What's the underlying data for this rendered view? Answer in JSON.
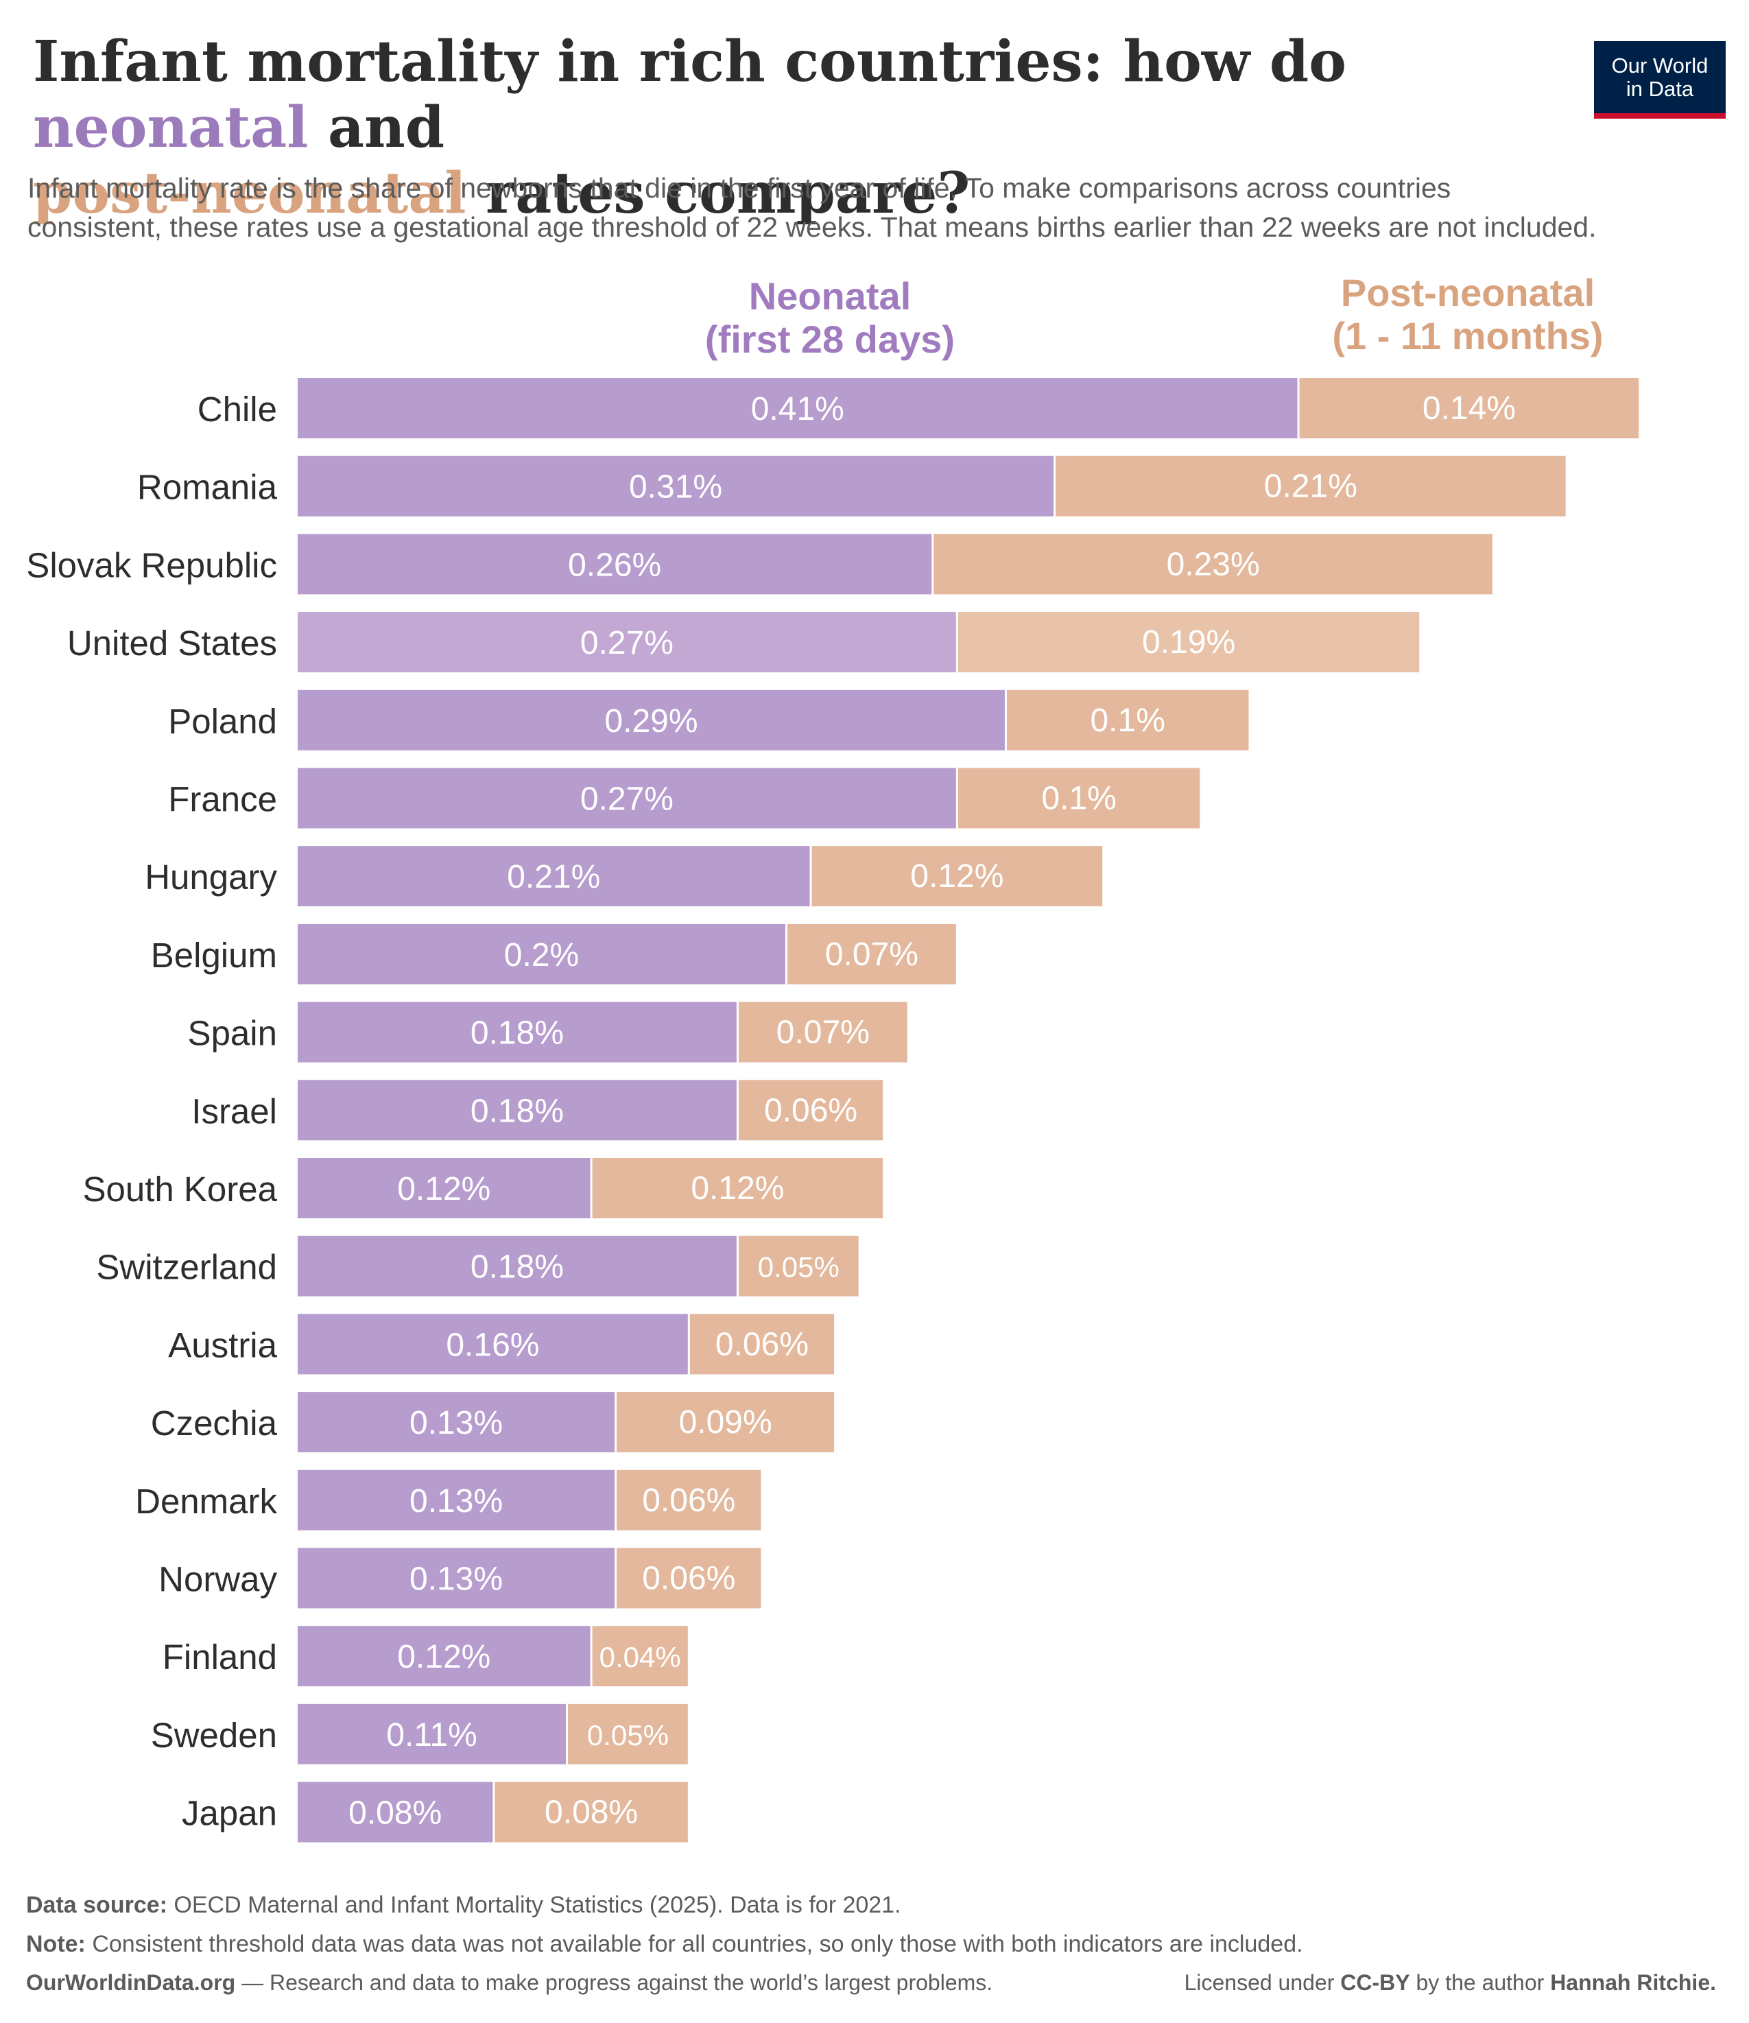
{
  "header": {
    "title_part1": "Infant mortality in rich countries: how do ",
    "title_neonatal": "neonatal",
    "title_part2": " and",
    "title_postneonatal": "post-neonatal",
    "title_part3": " rates compare?",
    "subtitle_line1": "Infant mortality rate is the share of newborns that die in the first year of life. To make comparisons across countries",
    "subtitle_line2": "consistent, these rates use a gestational age threshold of 22 weeks. That means births earlier than 22 weeks are not included."
  },
  "logo": {
    "line1": "Our World",
    "line2": "in Data"
  },
  "colors": {
    "neonatal": "#b79cce",
    "neonatal_highlight": "#c3a8d4",
    "postneonatal": "#e3b89c",
    "postneonatal_highlight": "#e8c3aa",
    "neonatal_text": "#a07bbf",
    "postneonatal_text": "#d9a37f",
    "label_text": "#ffffff",
    "country_text": "#2d2d2d"
  },
  "chart_data": {
    "type": "bar",
    "orientation": "horizontal",
    "stacked": true,
    "unit": "%",
    "series_headings": [
      {
        "line1": "Neonatal",
        "line2": "(first 28 days)"
      },
      {
        "line1": "Post-neonatal",
        "line2": "(1 - 11 months)"
      }
    ],
    "categories": [
      "Chile",
      "Romania",
      "Slovak Republic",
      "United States",
      "Poland",
      "France",
      "Hungary",
      "Belgium",
      "Spain",
      "Israel",
      "South Korea",
      "Switzerland",
      "Austria",
      "Czechia",
      "Denmark",
      "Norway",
      "Finland",
      "Sweden",
      "Japan"
    ],
    "series": [
      {
        "values": [
          0.41,
          0.31,
          0.26,
          0.27,
          0.29,
          0.27,
          0.21,
          0.2,
          0.18,
          0.18,
          0.12,
          0.18,
          0.16,
          0.13,
          0.13,
          0.13,
          0.12,
          0.11,
          0.08
        ],
        "labels": [
          "0.41%",
          "0.31%",
          "0.26%",
          "0.27%",
          "0.29%",
          "0.27%",
          "0.21%",
          "0.2%",
          "0.18%",
          "0.18%",
          "0.12%",
          "0.18%",
          "0.16%",
          "0.13%",
          "0.13%",
          "0.13%",
          "0.12%",
          "0.11%",
          "0.08%"
        ]
      },
      {
        "values": [
          0.14,
          0.21,
          0.23,
          0.19,
          0.1,
          0.1,
          0.12,
          0.07,
          0.07,
          0.06,
          0.12,
          0.05,
          0.06,
          0.09,
          0.06,
          0.06,
          0.04,
          0.05,
          0.08
        ],
        "labels": [
          "0.14%",
          "0.21%",
          "0.23%",
          "0.19%",
          "0.1%",
          "0.1%",
          "0.12%",
          "0.07%",
          "0.07%",
          "0.06%",
          "0.12%",
          "0.05%",
          "0.06%",
          "0.09%",
          "0.06%",
          "0.06%",
          "0.04%",
          "0.05%",
          "0.08%"
        ]
      }
    ],
    "highlighted_category": "United States",
    "xlim": [
      0,
      0.55
    ],
    "grid": false
  },
  "footer": {
    "source_label": "Data source:",
    "source_text": " OECD Maternal and Infant Mortality Statistics (2025). Data is for 2021.",
    "note_label": "Note:",
    "note_text": " Consistent threshold data was data was not available for all countries, so only those with both indicators are included.",
    "site": "OurWorldinData.org",
    "tagline": " — Research and data to make progress against the world’s largest problems.",
    "license_prefix": "Licensed under ",
    "license": "CC-BY",
    "license_mid": " by the author ",
    "author": "Hannah Ritchie."
  }
}
